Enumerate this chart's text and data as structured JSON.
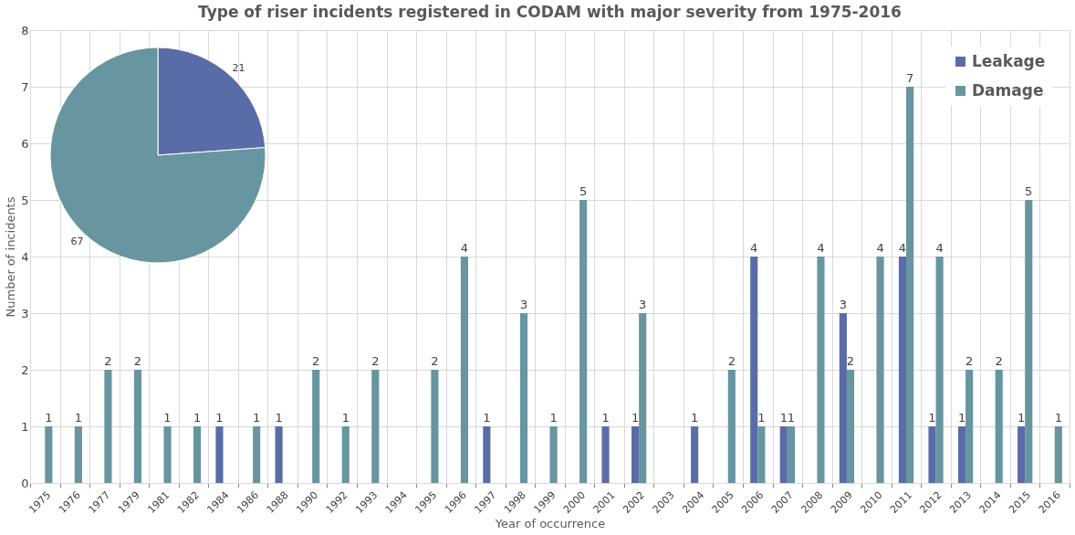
{
  "chart_data": [
    {
      "type": "bar",
      "title": "Type of riser incidents registered in CODAM with major severity from 1975-2016",
      "xlabel": "Year of occurrence",
      "ylabel": "Number of incidents",
      "categories": [
        "1975",
        "1976",
        "1977",
        "1979",
        "1981",
        "1982",
        "1984",
        "1986",
        "1988",
        "1990",
        "1992",
        "1993",
        "1994",
        "1995",
        "1996",
        "1997",
        "1998",
        "1999",
        "2000",
        "2001",
        "2002",
        "2003",
        "2004",
        "2005",
        "2006",
        "2007",
        "2008",
        "2009",
        "2010",
        "2011",
        "2012",
        "2013",
        "2014",
        "2015",
        "2016"
      ],
      "series": [
        {
          "name": "Leakage",
          "color": "#5a6ca8",
          "values": [
            null,
            null,
            null,
            null,
            null,
            null,
            1,
            null,
            1,
            null,
            null,
            null,
            null,
            null,
            null,
            1,
            null,
            null,
            null,
            1,
            1,
            null,
            1,
            null,
            4,
            1,
            null,
            3,
            null,
            4,
            1,
            1,
            null,
            1,
            null
          ]
        },
        {
          "name": "Damage",
          "color": "#6795a0",
          "values": [
            1,
            1,
            2,
            2,
            1,
            1,
            null,
            1,
            null,
            2,
            1,
            2,
            null,
            2,
            4,
            null,
            3,
            1,
            5,
            null,
            3,
            null,
            null,
            2,
            1,
            1,
            4,
            2,
            4,
            7,
            4,
            2,
            2,
            5,
            1
          ]
        }
      ],
      "ylim": [
        0,
        8
      ],
      "yticks": [
        0,
        1,
        2,
        3,
        4,
        5,
        6,
        7,
        8
      ],
      "grid": true,
      "legend": "top right",
      "data_labels": true
    },
    {
      "type": "pie",
      "categories": [
        null,
        null
      ],
      "values": [
        21,
        67
      ],
      "colors": [
        "#5a6ca8",
        "#6795a0"
      ],
      "data_labels": true
    }
  ]
}
